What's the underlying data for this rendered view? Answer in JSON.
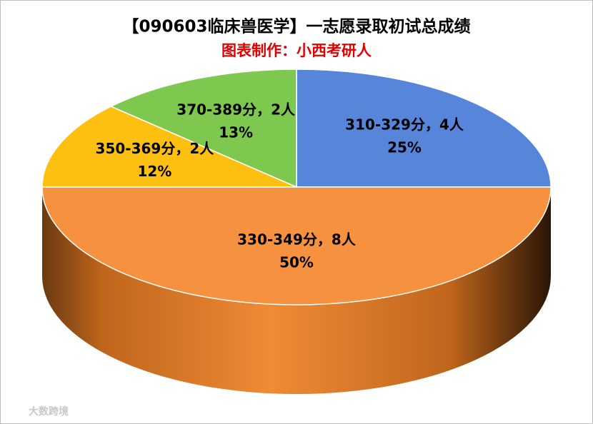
{
  "chart_data": {
    "type": "pie",
    "title": "【090603临床兽医学】一志愿录取初试总成绩",
    "subtitle": "图表制作：小西考研人",
    "categories": [
      "310-329分，4人",
      "330-349分，8人",
      "350-369分，2人",
      "370-389分，2人"
    ],
    "values": [
      25,
      50,
      12,
      13
    ],
    "value_labels": [
      "25%",
      "50%",
      "12%",
      "13%"
    ],
    "colors": [
      "#5685da",
      "#f6913f",
      "#fdc010",
      "#7ec84f"
    ],
    "watermark": "大数跨境"
  }
}
